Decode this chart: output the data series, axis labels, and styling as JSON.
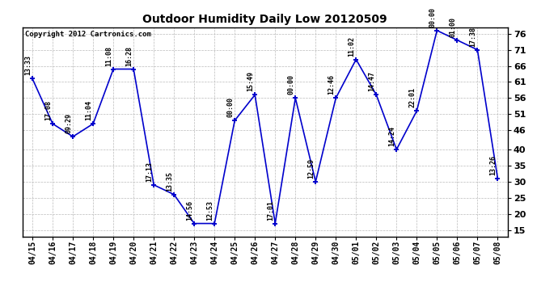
{
  "title": "Outdoor Humidity Daily Low 20120509",
  "copyright": "Copyright 2012 Cartronics.com",
  "line_color": "#0000cc",
  "bg_color": "#ffffff",
  "grid_color": "#bbbbbb",
  "x_labels": [
    "04/15",
    "04/16",
    "04/17",
    "04/18",
    "04/19",
    "04/20",
    "04/21",
    "04/22",
    "04/23",
    "04/24",
    "04/25",
    "04/26",
    "04/27",
    "04/28",
    "04/29",
    "04/30",
    "05/01",
    "05/02",
    "05/03",
    "05/04",
    "05/05",
    "05/06",
    "05/07",
    "05/08"
  ],
  "y_values": [
    62,
    48,
    44,
    48,
    65,
    65,
    29,
    26,
    17,
    17,
    49,
    57,
    17,
    56,
    30,
    56,
    68,
    57,
    40,
    52,
    77,
    74,
    71,
    31
  ],
  "annotations": [
    "13:33",
    "17:08",
    "09:29",
    "11:04",
    "11:08",
    "16:28",
    "17:13",
    "13:35",
    "14:56",
    "12:53",
    "00:00",
    "15:49",
    "17:01",
    "00:00",
    "12:59",
    "12:46",
    "11:02",
    "14:47",
    "14:24",
    "22:01",
    "00:00",
    "01:00",
    "17:38",
    "13:26"
  ],
  "ylim_min": 13,
  "ylim_max": 78,
  "yticks": [
    15,
    20,
    25,
    30,
    35,
    40,
    46,
    51,
    56,
    61,
    66,
    71,
    76
  ],
  "title_fontsize": 10,
  "tick_fontsize": 7,
  "annot_fontsize": 6,
  "copyright_fontsize": 6.5
}
